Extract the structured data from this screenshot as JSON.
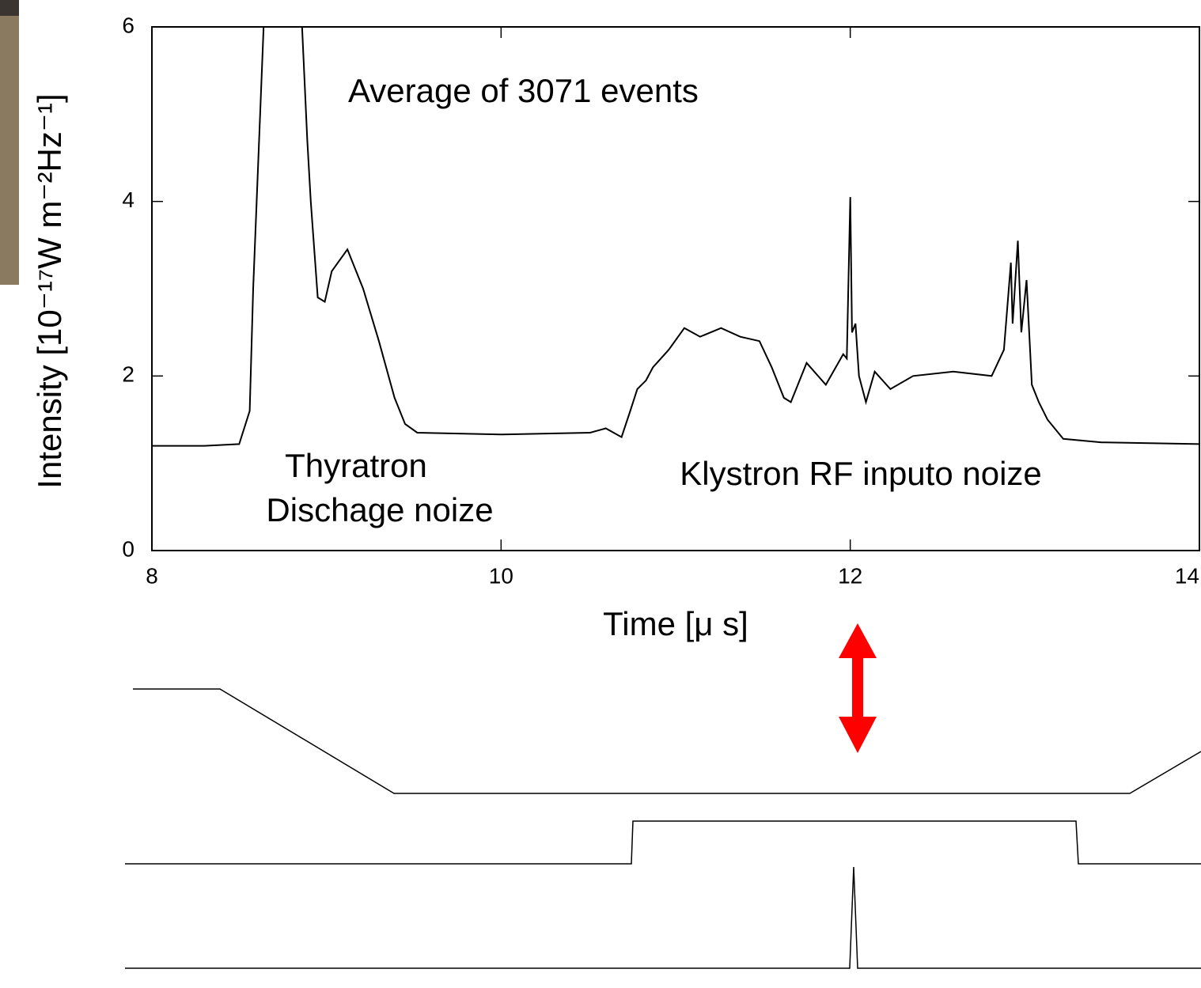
{
  "chart_data": {
    "type": "line",
    "annotations": [
      "Average of 3071 events",
      "Thyratron",
      "Dischage noize",
      "Klystron RF inputo noize"
    ],
    "xlabel": "Time [μ s]",
    "ylabel": "Intensity [10⁻¹⁷W m⁻²Hz⁻¹]",
    "xlim": [
      8,
      14
    ],
    "ylim": [
      0,
      6
    ],
    "xticks": [
      8,
      10,
      12,
      14
    ],
    "yticks": [
      0,
      2,
      4,
      6
    ],
    "series": [
      {
        "color": "#000000",
        "x": [
          8.0,
          8.3,
          8.5,
          8.56,
          8.58,
          8.64,
          8.86,
          8.89,
          8.91,
          8.95,
          8.99,
          9.03,
          9.12,
          9.21,
          9.3,
          9.39,
          9.45,
          9.52,
          10.0,
          10.51,
          10.6,
          10.69,
          10.74,
          10.78,
          10.83,
          10.87,
          10.96,
          11.05,
          11.14,
          11.26,
          11.37,
          11.48,
          11.55,
          11.62,
          11.66,
          11.75,
          11.86,
          11.96,
          11.98,
          12.0,
          12.01,
          12.03,
          12.05,
          12.09,
          12.14,
          12.23,
          12.36,
          12.59,
          12.81,
          12.88,
          12.92,
          12.93,
          12.96,
          12.98,
          13.01,
          13.04,
          13.08,
          13.13,
          13.22,
          13.44,
          14.0
        ],
        "values": [
          1.2,
          1.2,
          1.22,
          1.6,
          3.0,
          6,
          6,
          4.7,
          4.0,
          2.9,
          2.85,
          3.2,
          3.45,
          3.0,
          2.4,
          1.75,
          1.45,
          1.35,
          1.33,
          1.35,
          1.4,
          1.3,
          1.6,
          1.85,
          1.95,
          2.1,
          2.3,
          2.55,
          2.45,
          2.55,
          2.45,
          2.4,
          2.1,
          1.75,
          1.7,
          2.15,
          1.9,
          2.25,
          2.2,
          4.05,
          2.5,
          2.6,
          2.0,
          1.7,
          2.05,
          1.85,
          2.0,
          2.05,
          2.0,
          2.3,
          3.3,
          2.6,
          3.55,
          2.5,
          3.1,
          1.9,
          1.7,
          1.5,
          1.28,
          1.24,
          1.22
        ]
      }
    ]
  }
}
